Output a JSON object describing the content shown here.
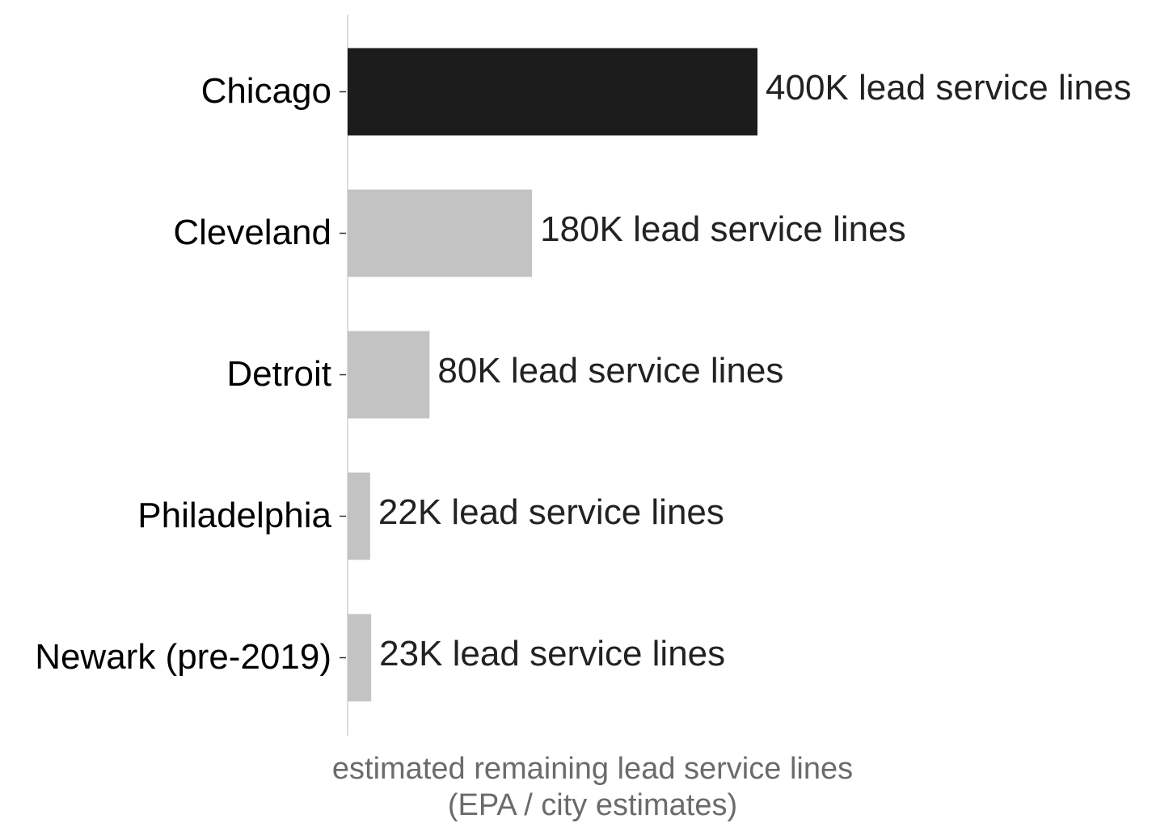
{
  "chart_data": {
    "type": "barh",
    "categories": [
      "Chicago",
      "Cleveland",
      "Detroit",
      "Philadelphia",
      "Newark (pre-2019)"
    ],
    "values": [
      400000,
      180000,
      80000,
      22000,
      23000
    ],
    "value_labels": [
      "400K lead service lines",
      "180K lead service lines",
      "80K lead service lines",
      "22K lead service lines",
      "23K lead service lines"
    ],
    "colors": [
      "#1c1c1c",
      "#c3c3c3",
      "#c3c3c3",
      "#c3c3c3",
      "#c3c3c3"
    ],
    "xlabel": [
      "estimated remaining lead service lines",
      "(EPA / city estimates)"
    ]
  }
}
